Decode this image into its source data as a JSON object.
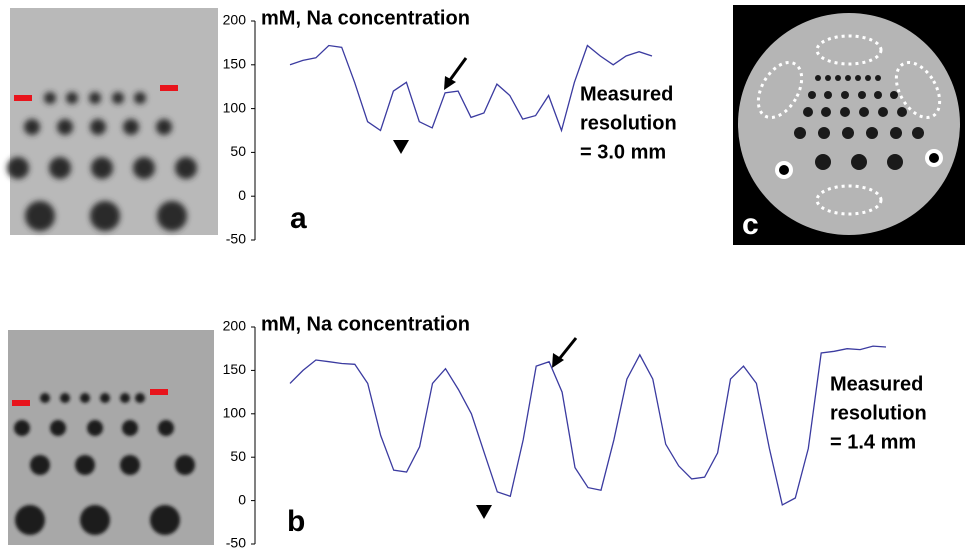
{
  "chart_data": [
    {
      "type": "line",
      "title": "mM, Na concentration",
      "panel_label": "a",
      "annotation": [
        "Measured",
        "resolution",
        "= 3.0 mm"
      ],
      "ylim": [
        -50,
        200
      ],
      "yticks": [
        -50,
        0,
        50,
        100,
        150,
        200
      ],
      "color": "#3b3ba0",
      "values": [
        150,
        155,
        158,
        172,
        170,
        130,
        85,
        75,
        120,
        130,
        85,
        78,
        118,
        120,
        90,
        95,
        128,
        115,
        88,
        92,
        115,
        75,
        130,
        172,
        160,
        150,
        160,
        165,
        160
      ]
    },
    {
      "type": "line",
      "title": "mM, Na concentration",
      "panel_label": "b",
      "annotation": [
        "Measured",
        "resolution",
        "= 1.4 mm"
      ],
      "ylim": [
        -50,
        200
      ],
      "yticks": [
        -50,
        0,
        50,
        100,
        150,
        200
      ],
      "color": "#3b3ba0",
      "values": [
        135,
        150,
        162,
        160,
        158,
        157,
        135,
        75,
        35,
        33,
        62,
        135,
        152,
        128,
        100,
        55,
        10,
        5,
        70,
        155,
        160,
        125,
        38,
        15,
        12,
        70,
        140,
        168,
        140,
        65,
        40,
        25,
        27,
        55,
        140,
        155,
        135,
        60,
        -5,
        3,
        60,
        170,
        172,
        175,
        174,
        178,
        177
      ]
    }
  ],
  "image_label": "c"
}
